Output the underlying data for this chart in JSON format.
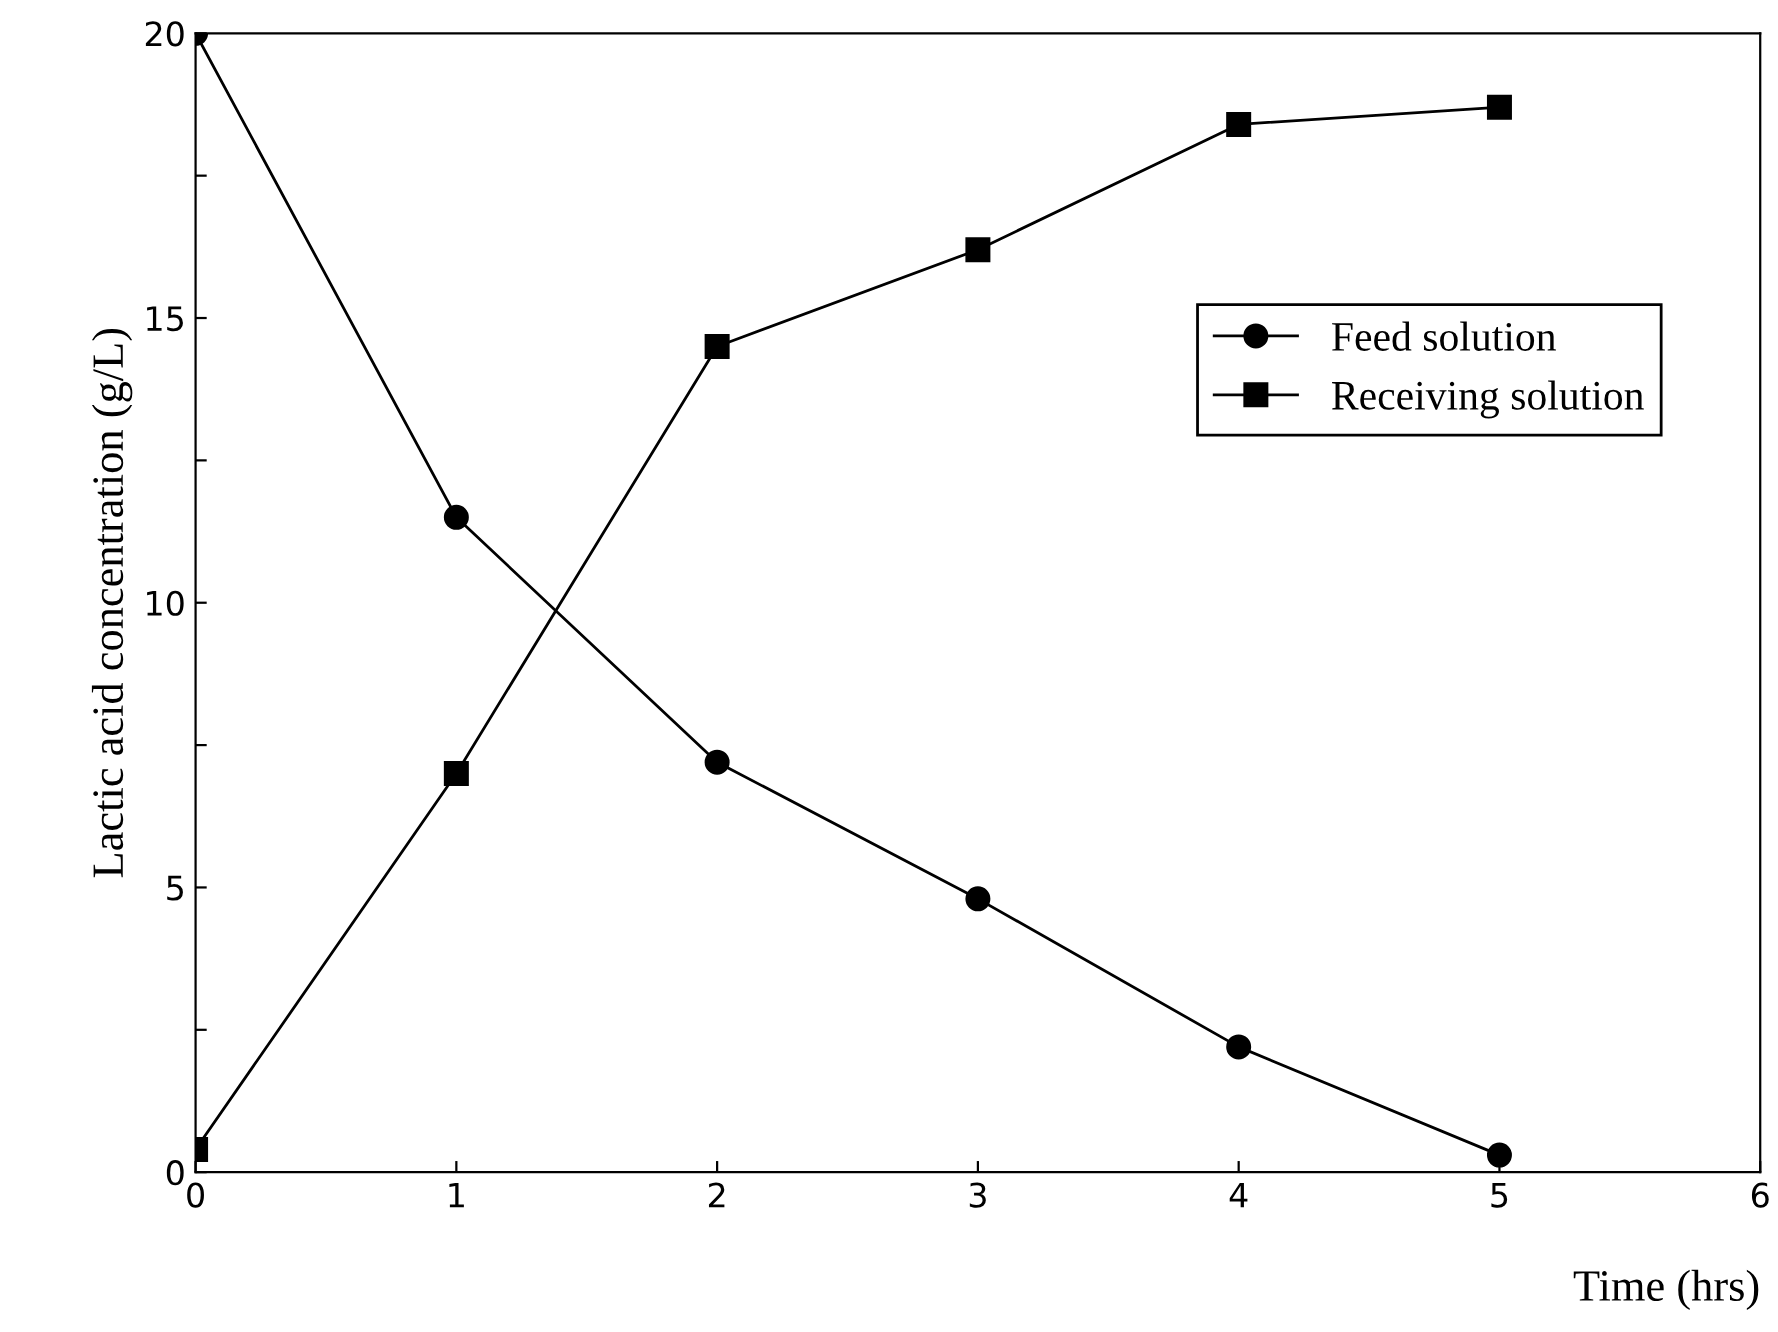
{
  "chart_data": {
    "type": "line",
    "xlabel": "Time (hrs)",
    "ylabel": "Lactic acid concentration (g/L)",
    "x": [
      0,
      1,
      2,
      3,
      4,
      5
    ],
    "series": [
      {
        "name": "Feed solution",
        "color": "#000000",
        "marker": "circle",
        "values": [
          20,
          11.5,
          7.2,
          4.8,
          2.2,
          0.3
        ]
      },
      {
        "name": "Receiving solution",
        "color": "#000000",
        "marker": "square",
        "values": [
          0.4,
          7.0,
          14.5,
          16.2,
          18.4,
          18.7
        ]
      }
    ],
    "xlim": [
      0,
      6
    ],
    "xticks": [
      0,
      1,
      2,
      3,
      4,
      5,
      6
    ],
    "ylim": [
      0,
      20
    ],
    "yticks": [
      0,
      {
        "value": 2.5,
        "label": null
      },
      5,
      {
        "value": 7.5,
        "label": null
      },
      10,
      {
        "value": 12.5,
        "label": null
      },
      15,
      {
        "value": 17.5,
        "label": null
      },
      20
    ],
    "grid": false,
    "legend": "top right",
    "line_style": "solid"
  }
}
